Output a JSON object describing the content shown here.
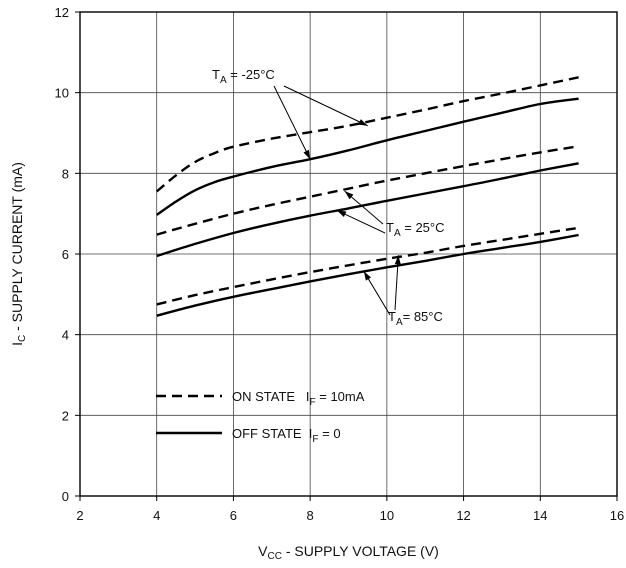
{
  "chart_data": {
    "type": "line",
    "xlabel": {
      "main": "V",
      "sub": "CC",
      "rest": " - SUPPLY VOLTAGE (V)"
    },
    "ylabel": {
      "main": "I",
      "sub": "C",
      "rest": " - SUPPLY CURRENT (mA)"
    },
    "xlim": [
      2,
      16
    ],
    "ylim": [
      0,
      12
    ],
    "xticks": [
      "2",
      "4",
      "6",
      "8",
      "10",
      "12",
      "14",
      "16"
    ],
    "yticks": [
      "0",
      "2",
      "4",
      "6",
      "8",
      "10",
      "12"
    ],
    "grid": true,
    "legend_position": "bottom-left",
    "legend": [
      {
        "style": "dashed",
        "label_a": "ON STATE   I",
        "label_sub": "F",
        "label_b": " = 10mA"
      },
      {
        "style": "solid",
        "label_a": "OFF STATE  I",
        "label_sub": "F",
        "label_b": " = 0"
      }
    ],
    "annotations": [
      {
        "pre": "T",
        "sub": "A",
        "post": " = -25°C"
      },
      {
        "pre": "T",
        "sub": "A",
        "post": " = 25°C"
      },
      {
        "pre": "T",
        "sub": "A",
        "post": "= 85°C"
      }
    ],
    "series": [
      {
        "style": "dashed",
        "group": 0,
        "x": [
          4,
          4.5,
          5,
          5.5,
          6,
          7,
          8,
          9,
          10,
          11,
          12,
          13,
          14,
          15
        ],
        "y": [
          7.55,
          7.95,
          8.28,
          8.5,
          8.66,
          8.86,
          9.02,
          9.18,
          9.38,
          9.58,
          9.79,
          9.98,
          10.18,
          10.38
        ]
      },
      {
        "style": "solid",
        "group": 0,
        "x": [
          4,
          4.5,
          5,
          5.5,
          6,
          7,
          8,
          9,
          10,
          11,
          12,
          13,
          14,
          15
        ],
        "y": [
          6.97,
          7.3,
          7.58,
          7.78,
          7.92,
          8.16,
          8.35,
          8.57,
          8.82,
          9.05,
          9.28,
          9.5,
          9.72,
          9.85
        ]
      },
      {
        "style": "dashed",
        "group": 1,
        "x": [
          4,
          5,
          6,
          7,
          8,
          9,
          10,
          11,
          12,
          13,
          14,
          15
        ],
        "y": [
          6.48,
          6.75,
          7.0,
          7.22,
          7.42,
          7.62,
          7.82,
          8.0,
          8.18,
          8.35,
          8.52,
          8.67
        ]
      },
      {
        "style": "solid",
        "group": 1,
        "x": [
          4,
          5,
          6,
          7,
          8,
          9,
          10,
          11,
          12,
          13,
          14,
          15
        ],
        "y": [
          5.95,
          6.25,
          6.52,
          6.75,
          6.95,
          7.13,
          7.32,
          7.5,
          7.68,
          7.87,
          8.07,
          8.25
        ]
      },
      {
        "style": "dashed",
        "group": 2,
        "x": [
          4,
          5,
          6,
          7,
          8,
          9,
          10,
          11,
          12,
          13,
          14,
          15
        ],
        "y": [
          4.75,
          4.98,
          5.18,
          5.37,
          5.55,
          5.72,
          5.88,
          6.03,
          6.2,
          6.35,
          6.5,
          6.65
        ]
      },
      {
        "style": "solid",
        "group": 2,
        "x": [
          4,
          5,
          6,
          7,
          8,
          9,
          10,
          11,
          12,
          13,
          14,
          15
        ],
        "y": [
          4.47,
          4.72,
          4.94,
          5.13,
          5.32,
          5.5,
          5.67,
          5.83,
          6.0,
          6.15,
          6.3,
          6.47
        ]
      }
    ]
  }
}
